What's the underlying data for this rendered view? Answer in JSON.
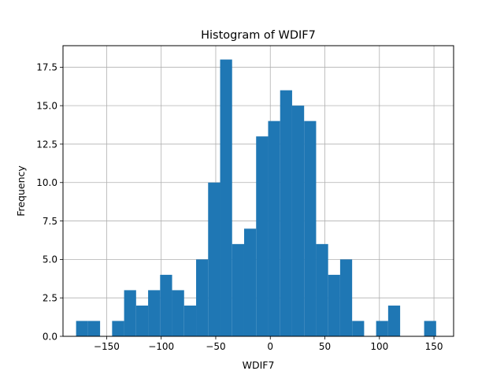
{
  "chart_data": {
    "type": "bar",
    "title": "Histogram of WDIF7",
    "xlabel": "WDIF7",
    "ylabel": "Frequency",
    "xlim": [
      -190,
      168
    ],
    "ylim": [
      0,
      18.9
    ],
    "grid": true,
    "bar_color": "#1f77b4",
    "bin_width": 11,
    "bins": [
      {
        "x0": -178,
        "count": 1
      },
      {
        "x0": -167,
        "count": 1
      },
      {
        "x0": -145,
        "count": 1
      },
      {
        "x0": -134,
        "count": 3
      },
      {
        "x0": -123,
        "count": 2
      },
      {
        "x0": -112,
        "count": 3
      },
      {
        "x0": -101,
        "count": 4
      },
      {
        "x0": -90,
        "count": 3
      },
      {
        "x0": -79,
        "count": 2
      },
      {
        "x0": -68,
        "count": 5
      },
      {
        "x0": -57,
        "count": 10
      },
      {
        "x0": -46,
        "count": 18
      },
      {
        "x0": -35,
        "count": 6
      },
      {
        "x0": -24,
        "count": 7
      },
      {
        "x0": -13,
        "count": 13
      },
      {
        "x0": -2,
        "count": 14
      },
      {
        "x0": 9,
        "count": 16
      },
      {
        "x0": 20,
        "count": 15
      },
      {
        "x0": 31,
        "count": 14
      },
      {
        "x0": 42,
        "count": 6
      },
      {
        "x0": 53,
        "count": 4
      },
      {
        "x0": 64,
        "count": 5
      },
      {
        "x0": 75,
        "count": 1
      },
      {
        "x0": 97,
        "count": 1
      },
      {
        "x0": 108,
        "count": 2
      },
      {
        "x0": 141,
        "count": 1
      }
    ],
    "x_ticks": [
      {
        "value": -150,
        "label": "−150"
      },
      {
        "value": -100,
        "label": "−100"
      },
      {
        "value": -50,
        "label": "−50"
      },
      {
        "value": 0,
        "label": "0"
      },
      {
        "value": 50,
        "label": "50"
      },
      {
        "value": 100,
        "label": "100"
      },
      {
        "value": 150,
        "label": "150"
      }
    ],
    "y_ticks": [
      {
        "value": 0,
        "label": "0.0"
      },
      {
        "value": 2.5,
        "label": "2.5"
      },
      {
        "value": 5,
        "label": "5.0"
      },
      {
        "value": 7.5,
        "label": "7.5"
      },
      {
        "value": 10,
        "label": "10.0"
      },
      {
        "value": 12.5,
        "label": "12.5"
      },
      {
        "value": 15,
        "label": "15.0"
      },
      {
        "value": 17.5,
        "label": "17.5"
      }
    ]
  }
}
